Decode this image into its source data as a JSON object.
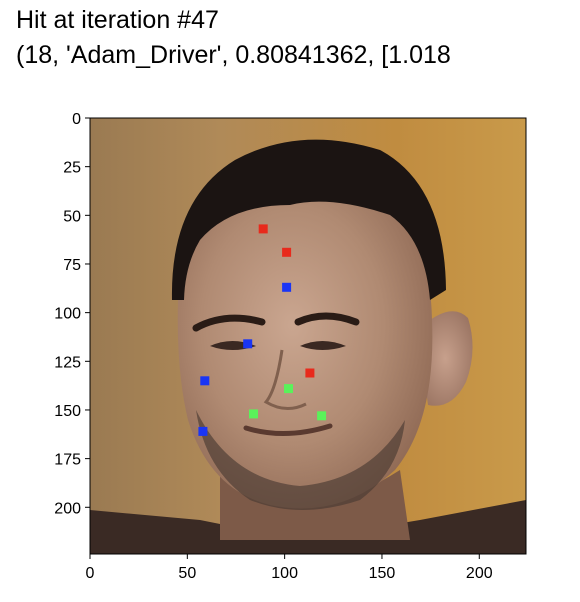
{
  "header": {
    "line1": "Hit at iteration #47",
    "line2": "(18, 'Adam_Driver', 0.80841362, [1.018"
  },
  "chart_data": {
    "type": "scatter",
    "title": "",
    "xlabel": "",
    "ylabel": "",
    "xlim": [
      0,
      224
    ],
    "ylim": [
      224,
      0
    ],
    "y_inverted": true,
    "background": "image: portrait photo of a man's face",
    "x_ticks": [
      0,
      50,
      100,
      150,
      200
    ],
    "y_ticks": [
      0,
      25,
      50,
      75,
      100,
      125,
      150,
      175,
      200
    ],
    "series": [
      {
        "color": "#e82a1c",
        "points": [
          [
            89,
            57
          ],
          [
            101,
            69
          ],
          [
            113,
            131
          ]
        ]
      },
      {
        "color": "#1a35f5",
        "points": [
          [
            101,
            87
          ],
          [
            81,
            116
          ],
          [
            59,
            135
          ],
          [
            58,
            161
          ]
        ]
      },
      {
        "color": "#5af25a",
        "points": [
          [
            102,
            139
          ],
          [
            84,
            152
          ],
          [
            119,
            153
          ]
        ]
      }
    ]
  }
}
